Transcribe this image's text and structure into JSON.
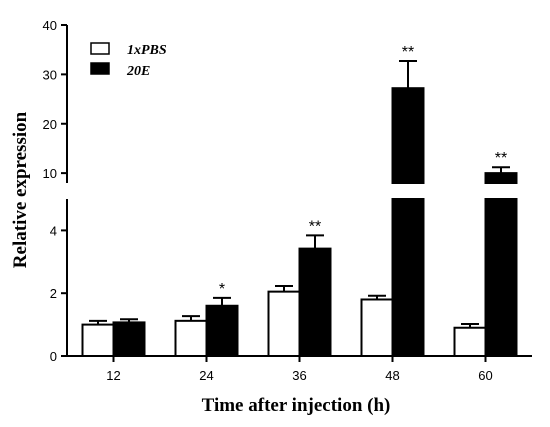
{
  "chart_data": {
    "type": "bar",
    "categories": [
      "12",
      "24",
      "36",
      "48",
      "60"
    ],
    "series": [
      {
        "name": "1xPBS",
        "color": "#ffffff",
        "values": [
          1.0,
          1.12,
          2.05,
          1.8,
          0.9
        ],
        "errors": [
          0.12,
          0.15,
          0.18,
          0.12,
          0.12
        ]
      },
      {
        "name": "20E",
        "color": "#000000",
        "values": [
          1.07,
          1.6,
          3.42,
          27.2,
          10.0
        ],
        "errors": [
          0.1,
          0.25,
          0.42,
          5.5,
          1.2
        ]
      }
    ],
    "significance": [
      "",
      "*",
      "**",
      "**",
      "**"
    ],
    "xlabel": "Time after injection (h)",
    "ylabel": "Relative expression",
    "axis_break": {
      "lower_range": [
        0,
        5
      ],
      "upper_range": [
        8,
        40
      ]
    },
    "lower_ticks": [
      "0",
      "2",
      "4"
    ],
    "upper_ticks": [
      "10",
      "20",
      "30",
      "40"
    ],
    "legend_position": "top-left"
  }
}
